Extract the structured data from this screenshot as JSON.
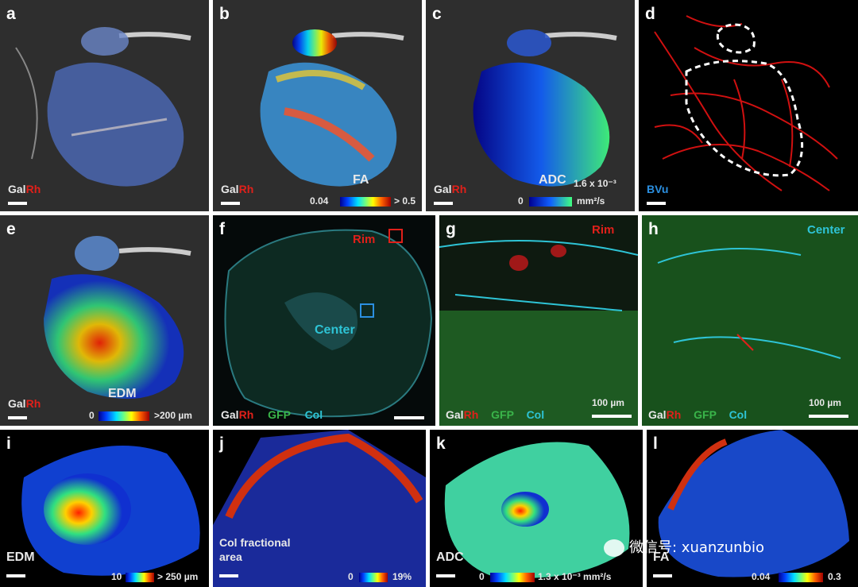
{
  "panels": {
    "a": {
      "letter": "a",
      "stain_gal": "Gal",
      "stain_rh": "Rh"
    },
    "b": {
      "letter": "b",
      "stain_gal": "Gal",
      "stain_rh": "Rh",
      "metric": "FA",
      "cbar_min": "0.04",
      "cbar_max": "> 0.5"
    },
    "c": {
      "letter": "c",
      "stain_gal": "Gal",
      "stain_rh": "Rh",
      "metric": "ADC",
      "cbar_min": "0",
      "cbar_max": "1.6 x 10⁻³",
      "cbar_unit": "mm²/s"
    },
    "d": {
      "letter": "d",
      "stain": "BVu"
    },
    "e": {
      "letter": "e",
      "stain_gal": "Gal",
      "stain_rh": "Rh",
      "metric": "EDM",
      "cbar_min": "0",
      "cbar_max": ">200 µm"
    },
    "f": {
      "letter": "f",
      "rim": "Rim",
      "center": "Center",
      "stain_gal": "Gal",
      "stain_rh": "Rh",
      "gfp": "GFP",
      "col": "Col"
    },
    "g": {
      "letter": "g",
      "region": "Rim",
      "scale": "100 µm",
      "stain_gal": "Gal",
      "stain_rh": "Rh",
      "gfp": "GFP",
      "col": "Col"
    },
    "h": {
      "letter": "h",
      "region": "Center",
      "scale": "100 µm",
      "stain_gal": "Gal",
      "stain_rh": "Rh",
      "gfp": "GFP",
      "col": "Col"
    },
    "i": {
      "letter": "i",
      "metric": "EDM",
      "cbar_min": "10",
      "cbar_max": "> 250 µm"
    },
    "j": {
      "letter": "j",
      "metric_line1": "Col fractional",
      "metric_line2": "area",
      "cbar_min": "0",
      "cbar_max": "19%"
    },
    "k": {
      "letter": "k",
      "metric": "ADC",
      "cbar_min": "0",
      "cbar_max": "1.3 x 10⁻³ mm²/s"
    },
    "l": {
      "letter": "l",
      "metric": "FA",
      "cbar_min": "0.04",
      "cbar_max": "0.3"
    }
  },
  "watermark": "微信号: xuanzunbio",
  "colors": {
    "rh_red": "#e0201a",
    "gfp_green": "#3ab54a",
    "col_cyan": "#2ec4d6",
    "bvu_blue": "#2b8fe0"
  }
}
